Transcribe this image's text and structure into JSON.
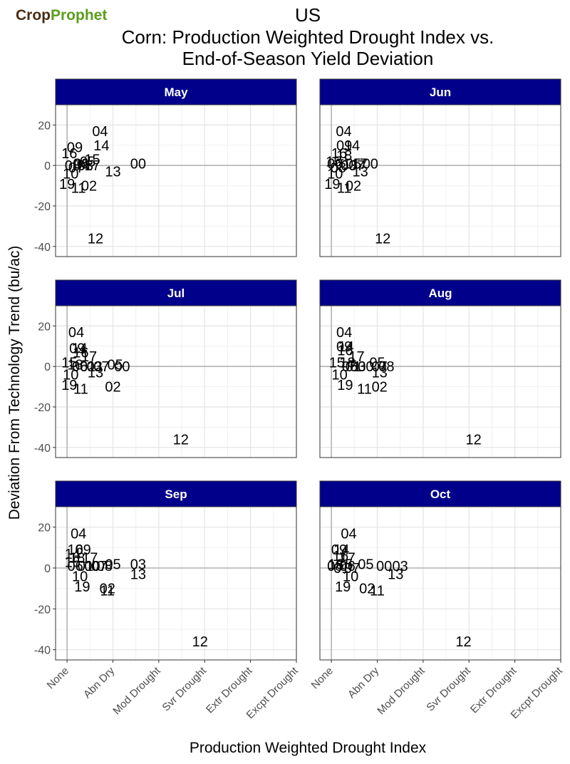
{
  "logo": {
    "crop": "Crop",
    "prophet": "Prophet"
  },
  "chart_data": {
    "type": "scatter",
    "title": [
      "US",
      "Corn: Production Weighted Drought Index vs.",
      "End-of-Season Yield Deviation"
    ],
    "xlabel": "Production Weighted Drought Index",
    "ylabel": "Deviation From Technology Trend (bu/ac)",
    "xlim": [
      -0.25,
      5.0
    ],
    "ylim": [
      -45,
      30
    ],
    "x_ticks": [
      0,
      1,
      2,
      3,
      4,
      5
    ],
    "x_tick_labels": [
      "None",
      "Abn Dry",
      "Mod Drought",
      "Svr Drought",
      "Extr Drought",
      "Excpt Drought"
    ],
    "y_ticks": [
      20,
      0,
      -20,
      -40
    ],
    "y_tick_labels": [
      "20",
      "0",
      "-20",
      "-40"
    ],
    "panel_header_color": "#00008b",
    "panels": [
      {
        "label": "May",
        "points": [
          {
            "l": "04",
            "x": 0.72,
            "y": 17
          },
          {
            "l": "09",
            "x": 0.17,
            "y": 9
          },
          {
            "l": "14",
            "x": 0.75,
            "y": 10
          },
          {
            "l": "16",
            "x": 0.05,
            "y": 6
          },
          {
            "l": "15",
            "x": 0.55,
            "y": 3
          },
          {
            "l": "05",
            "x": 0.45,
            "y": 2
          },
          {
            "l": "06",
            "x": 0.3,
            "y": 1
          },
          {
            "l": "01",
            "x": 0.32,
            "y": 1
          },
          {
            "l": "03",
            "x": 0.4,
            "y": 0
          },
          {
            "l": "08",
            "x": 0.12,
            "y": 0
          },
          {
            "l": "07",
            "x": 0.2,
            "y": -1
          },
          {
            "l": "17",
            "x": 0.55,
            "y": 0
          },
          {
            "l": "00",
            "x": 1.55,
            "y": 1
          },
          {
            "l": "13",
            "x": 1.0,
            "y": -3
          },
          {
            "l": "10",
            "x": 0.08,
            "y": -4
          },
          {
            "l": "19",
            "x": 0.0,
            "y": -9
          },
          {
            "l": "11",
            "x": 0.25,
            "y": -11
          },
          {
            "l": "02",
            "x": 0.48,
            "y": -10
          },
          {
            "l": "12",
            "x": 0.62,
            "y": -36
          }
        ]
      },
      {
        "label": "Jun",
        "points": [
          {
            "l": "04",
            "x": 0.27,
            "y": 17
          },
          {
            "l": "09",
            "x": 0.28,
            "y": 10
          },
          {
            "l": "14",
            "x": 0.45,
            "y": 10
          },
          {
            "l": "16",
            "x": 0.17,
            "y": 6
          },
          {
            "l": "18",
            "x": 0.28,
            "y": 5
          },
          {
            "l": "15",
            "x": 0.05,
            "y": 2
          },
          {
            "l": "06",
            "x": 0.08,
            "y": 1
          },
          {
            "l": "01",
            "x": 0.25,
            "y": 1
          },
          {
            "l": "05",
            "x": 0.48,
            "y": 1
          },
          {
            "l": "17",
            "x": 0.62,
            "y": 1
          },
          {
            "l": "00",
            "x": 0.85,
            "y": 1
          },
          {
            "l": "03",
            "x": 0.38,
            "y": 0
          },
          {
            "l": "08",
            "x": 0.15,
            "y": -1
          },
          {
            "l": "07",
            "x": 0.55,
            "y": 0
          },
          {
            "l": "13",
            "x": 0.63,
            "y": -3
          },
          {
            "l": "10",
            "x": 0.08,
            "y": -4
          },
          {
            "l": "19",
            "x": 0.02,
            "y": -9
          },
          {
            "l": "11",
            "x": 0.28,
            "y": -11
          },
          {
            "l": "02",
            "x": 0.48,
            "y": -10
          },
          {
            "l": "12",
            "x": 1.12,
            "y": -36
          }
        ]
      },
      {
        "label": "Jul",
        "points": [
          {
            "l": "04",
            "x": 0.2,
            "y": 17
          },
          {
            "l": "09",
            "x": 0.22,
            "y": 9
          },
          {
            "l": "14",
            "x": 0.27,
            "y": 9
          },
          {
            "l": "16",
            "x": 0.3,
            "y": 7
          },
          {
            "l": "17",
            "x": 0.48,
            "y": 5
          },
          {
            "l": "15",
            "x": 0.05,
            "y": 2
          },
          {
            "l": "18",
            "x": 0.18,
            "y": 1
          },
          {
            "l": "06",
            "x": 0.28,
            "y": 0
          },
          {
            "l": "01",
            "x": 0.45,
            "y": 0
          },
          {
            "l": "03",
            "x": 0.6,
            "y": 0
          },
          {
            "l": "07",
            "x": 0.75,
            "y": 0
          },
          {
            "l": "05",
            "x": 1.05,
            "y": 1
          },
          {
            "l": "00",
            "x": 1.2,
            "y": 0
          },
          {
            "l": "13",
            "x": 0.62,
            "y": -3
          },
          {
            "l": "10",
            "x": 0.08,
            "y": -4
          },
          {
            "l": "19",
            "x": 0.05,
            "y": -9
          },
          {
            "l": "11",
            "x": 0.3,
            "y": -11
          },
          {
            "l": "02",
            "x": 1.0,
            "y": -10
          },
          {
            "l": "12",
            "x": 2.48,
            "y": -36
          }
        ]
      },
      {
        "label": "Aug",
        "points": [
          {
            "l": "04",
            "x": 0.28,
            "y": 17
          },
          {
            "l": "09",
            "x": 0.28,
            "y": 10
          },
          {
            "l": "14",
            "x": 0.32,
            "y": 10
          },
          {
            "l": "16",
            "x": 0.3,
            "y": 8
          },
          {
            "l": "17",
            "x": 0.55,
            "y": 5
          },
          {
            "l": "15",
            "x": 0.12,
            "y": 2
          },
          {
            "l": "18",
            "x": 0.35,
            "y": 2
          },
          {
            "l": "06",
            "x": 0.4,
            "y": 0
          },
          {
            "l": "01",
            "x": 0.48,
            "y": 0
          },
          {
            "l": "03",
            "x": 0.58,
            "y": 0
          },
          {
            "l": "00",
            "x": 0.75,
            "y": 0
          },
          {
            "l": "05",
            "x": 1.0,
            "y": 2
          },
          {
            "l": "07",
            "x": 1.05,
            "y": 0
          },
          {
            "l": "08",
            "x": 1.2,
            "y": 0
          },
          {
            "l": "13",
            "x": 1.05,
            "y": -3
          },
          {
            "l": "10",
            "x": 0.18,
            "y": -4
          },
          {
            "l": "19",
            "x": 0.3,
            "y": -9
          },
          {
            "l": "11",
            "x": 0.72,
            "y": -11
          },
          {
            "l": "02",
            "x": 1.05,
            "y": -10
          },
          {
            "l": "12",
            "x": 3.1,
            "y": -36
          }
        ]
      },
      {
        "label": "Sep",
        "points": [
          {
            "l": "04",
            "x": 0.25,
            "y": 17
          },
          {
            "l": "16",
            "x": 0.18,
            "y": 9
          },
          {
            "l": "09",
            "x": 0.35,
            "y": 9
          },
          {
            "l": "14",
            "x": 0.12,
            "y": 7
          },
          {
            "l": "18",
            "x": 0.22,
            "y": 5
          },
          {
            "l": "15",
            "x": 0.12,
            "y": 3
          },
          {
            "l": "17",
            "x": 0.5,
            "y": 5
          },
          {
            "l": "06",
            "x": 0.18,
            "y": 1
          },
          {
            "l": "01",
            "x": 0.4,
            "y": 1
          },
          {
            "l": "00",
            "x": 0.55,
            "y": 1
          },
          {
            "l": "07",
            "x": 0.7,
            "y": 1
          },
          {
            "l": "05",
            "x": 1.0,
            "y": 2
          },
          {
            "l": "08",
            "x": 0.82,
            "y": 1
          },
          {
            "l": "03",
            "x": 1.55,
            "y": 2
          },
          {
            "l": "13",
            "x": 1.55,
            "y": -3
          },
          {
            "l": "10",
            "x": 0.28,
            "y": -4
          },
          {
            "l": "19",
            "x": 0.33,
            "y": -9
          },
          {
            "l": "02",
            "x": 0.88,
            "y": -10
          },
          {
            "l": "11",
            "x": 0.88,
            "y": -11
          },
          {
            "l": "12",
            "x": 2.9,
            "y": -36
          }
        ]
      },
      {
        "label": "Oct",
        "points": [
          {
            "l": "04",
            "x": 0.38,
            "y": 17
          },
          {
            "l": "09",
            "x": 0.17,
            "y": 9
          },
          {
            "l": "14",
            "x": 0.22,
            "y": 9
          },
          {
            "l": "16",
            "x": 0.2,
            "y": 6
          },
          {
            "l": "17",
            "x": 0.35,
            "y": 5
          },
          {
            "l": "18",
            "x": 0.1,
            "y": 2
          },
          {
            "l": "15",
            "x": 0.3,
            "y": 2
          },
          {
            "l": "06",
            "x": 0.35,
            "y": 1
          },
          {
            "l": "08",
            "x": 0.08,
            "y": 1
          },
          {
            "l": "01",
            "x": 0.22,
            "y": 0
          },
          {
            "l": "07",
            "x": 0.45,
            "y": 0
          },
          {
            "l": "05",
            "x": 0.75,
            "y": 2
          },
          {
            "l": "00",
            "x": 1.15,
            "y": 1
          },
          {
            "l": "03",
            "x": 1.5,
            "y": 1
          },
          {
            "l": "13",
            "x": 1.4,
            "y": -3
          },
          {
            "l": "10",
            "x": 0.42,
            "y": -4
          },
          {
            "l": "19",
            "x": 0.25,
            "y": -9
          },
          {
            "l": "02",
            "x": 0.78,
            "y": -10
          },
          {
            "l": "11",
            "x": 1.0,
            "y": -11
          },
          {
            "l": "12",
            "x": 2.88,
            "y": -36
          }
        ]
      }
    ]
  }
}
